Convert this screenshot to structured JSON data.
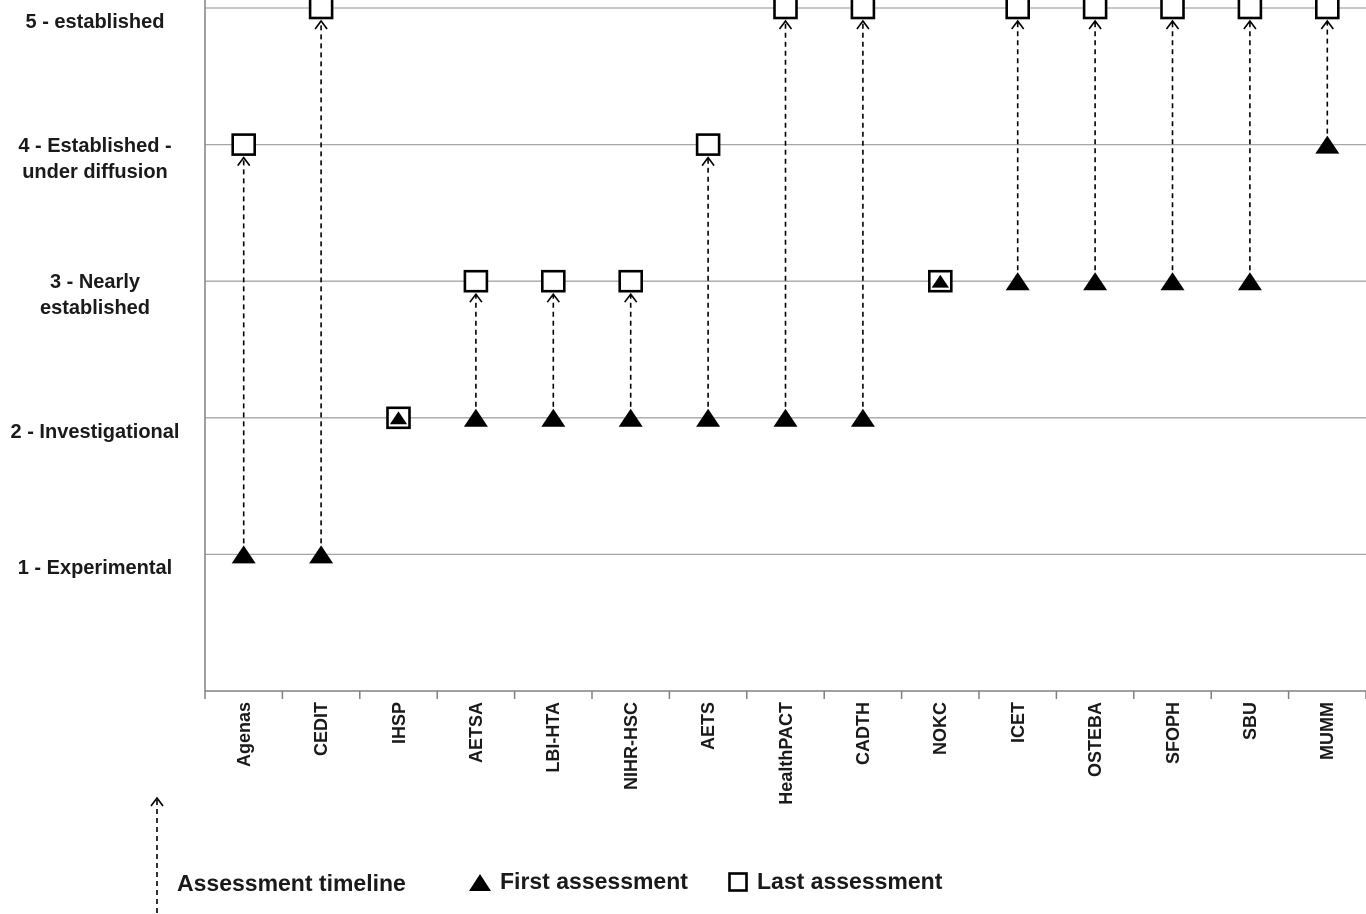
{
  "chart_data": {
    "type": "scatter",
    "title": "",
    "categories": [
      "Agenas",
      "CEDIT",
      "IHSP",
      "AETSA",
      "LBI-HTA",
      "NIHR-HSC",
      "AETS",
      "HealthPACT",
      "CADTH",
      "NOKC",
      "ICET",
      "OSTEBA",
      "SFOPH",
      "SBU",
      "MUMM"
    ],
    "series": [
      {
        "name": "First assessment",
        "marker": "triangle-filled-black",
        "values": [
          1,
          1,
          2,
          2,
          2,
          2,
          2,
          2,
          2,
          3,
          3,
          3,
          3,
          3,
          4
        ]
      },
      {
        "name": "Last assessment",
        "marker": "square-open-white",
        "values": [
          4,
          5,
          2,
          3,
          3,
          3,
          4,
          5,
          5,
          3,
          5,
          5,
          5,
          5,
          5
        ]
      }
    ],
    "y_ticks": [
      {
        "value": 5,
        "label": "5 - established"
      },
      {
        "value": 4,
        "label": "4 - Established -\nunder diffusion"
      },
      {
        "value": 3,
        "label": "3 - Nearly\nestablished"
      },
      {
        "value": 2,
        "label": "2 - Investigational"
      },
      {
        "value": 1,
        "label": "1 - Experimental"
      }
    ],
    "ylim": [
      0,
      5
    ],
    "grid": true,
    "legend_position": "bottom",
    "legend": {
      "timeline_label": "Assessment timeline",
      "first_label": "First assessment",
      "last_label": "Last assessment"
    },
    "colors": {
      "marker": "#000000",
      "gridline": "#a6a6a6",
      "axis": "#808080"
    }
  }
}
